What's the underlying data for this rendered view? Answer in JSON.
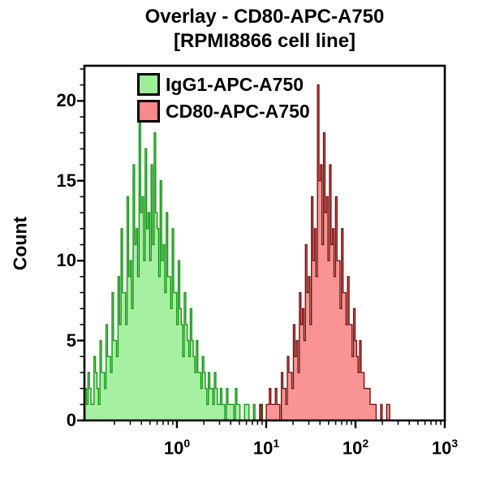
{
  "title": {
    "line1": "Overlay - CD80-APC-A750",
    "line2": "[RPMI8866 cell line]"
  },
  "axes": {
    "y_label": "Count",
    "y_tick_labels": [
      "0",
      "5",
      "10",
      "15",
      "20"
    ],
    "x_tick_labels": [
      {
        "base": "10",
        "exp": "0"
      },
      {
        "base": "10",
        "exp": "1"
      },
      {
        "base": "10",
        "exp": "2"
      },
      {
        "base": "10",
        "exp": "3"
      }
    ]
  },
  "legend": {
    "items": [
      {
        "label": "IgG1-APC-A750",
        "fill": "#9CEF97",
        "stroke": "#169616"
      },
      {
        "label": "CD80-APC-A750",
        "fill": "#F98888",
        "stroke": "#7B0F0F"
      }
    ]
  },
  "chart_data": {
    "type": "area",
    "subtype": "flow-cytometry-histogram-overlay",
    "title": "Overlay - CD80-APC-A750 [RPMI8866 cell line]",
    "xlabel": "",
    "ylabel": "Count",
    "xscale": "log10",
    "xlim_log10": [
      -1.036,
      3
    ],
    "ylim": [
      0,
      22.2
    ],
    "y_major_ticks": [
      0,
      5,
      10,
      15,
      20
    ],
    "y_minor_step": 1,
    "x_major_ticks_log10": [
      0,
      1,
      2,
      3
    ],
    "grid": false,
    "legend_position": "top-left-inside",
    "series": [
      {
        "name": "IgG1-APC-A750",
        "fill": "#9CEF97",
        "stroke": "#169616",
        "peak_x": 0.38,
        "peak_count": 19.7,
        "log10_x_start": -1.03,
        "log10_x_step": 0.01685,
        "counts": [
          2,
          1,
          3,
          2,
          1,
          1,
          4,
          3,
          2,
          1,
          5,
          3,
          3,
          2,
          6,
          4,
          4,
          3,
          8,
          5,
          5,
          4,
          9,
          6,
          12,
          8,
          8,
          6,
          14,
          9,
          10,
          7,
          16,
          11,
          12,
          9,
          19.7,
          13,
          14,
          10,
          17,
          12,
          13,
          10,
          16,
          11,
          18,
          13,
          12,
          9,
          15,
          10,
          11,
          8,
          13,
          9,
          9,
          7,
          12,
          8,
          8,
          6,
          10,
          7,
          6,
          4,
          8,
          6,
          5,
          4,
          7,
          5,
          4,
          3,
          5,
          3,
          3,
          2,
          4,
          3,
          2,
          1,
          3,
          2,
          2,
          1,
          3,
          2,
          1,
          1,
          2,
          1,
          1,
          0,
          2,
          1,
          1,
          1,
          1,
          0,
          2,
          1,
          1,
          0,
          0,
          0,
          1,
          1,
          1,
          0,
          0,
          0,
          1,
          0,
          0,
          0,
          1,
          1,
          0,
          0
        ]
      },
      {
        "name": "CD80-APC-A750",
        "fill": "#F98888",
        "stroke": "#7B0F0F",
        "peak_x": 38,
        "peak_count": 21,
        "log10_x_start": 0.9,
        "log10_x_step": 0.01685,
        "counts": [
          0,
          0,
          1,
          0,
          0,
          0,
          1,
          1,
          2,
          1,
          1,
          1,
          2,
          1,
          1,
          0,
          3,
          2,
          2,
          1,
          4,
          3,
          3,
          2,
          6,
          4,
          5,
          3,
          8,
          6,
          7,
          5,
          11,
          8,
          9,
          6,
          14,
          10,
          12,
          9,
          21,
          15,
          16,
          11,
          18,
          13,
          14,
          10,
          16,
          11,
          12,
          9,
          14,
          10,
          10,
          7,
          12,
          8,
          8,
          6,
          9,
          6,
          6,
          4,
          7,
          5,
          4,
          3,
          5,
          3,
          3,
          2,
          2,
          2,
          2,
          1,
          1,
          1,
          1,
          0,
          0,
          0,
          1,
          0,
          0,
          0,
          1,
          1,
          0,
          0
        ]
      }
    ]
  }
}
